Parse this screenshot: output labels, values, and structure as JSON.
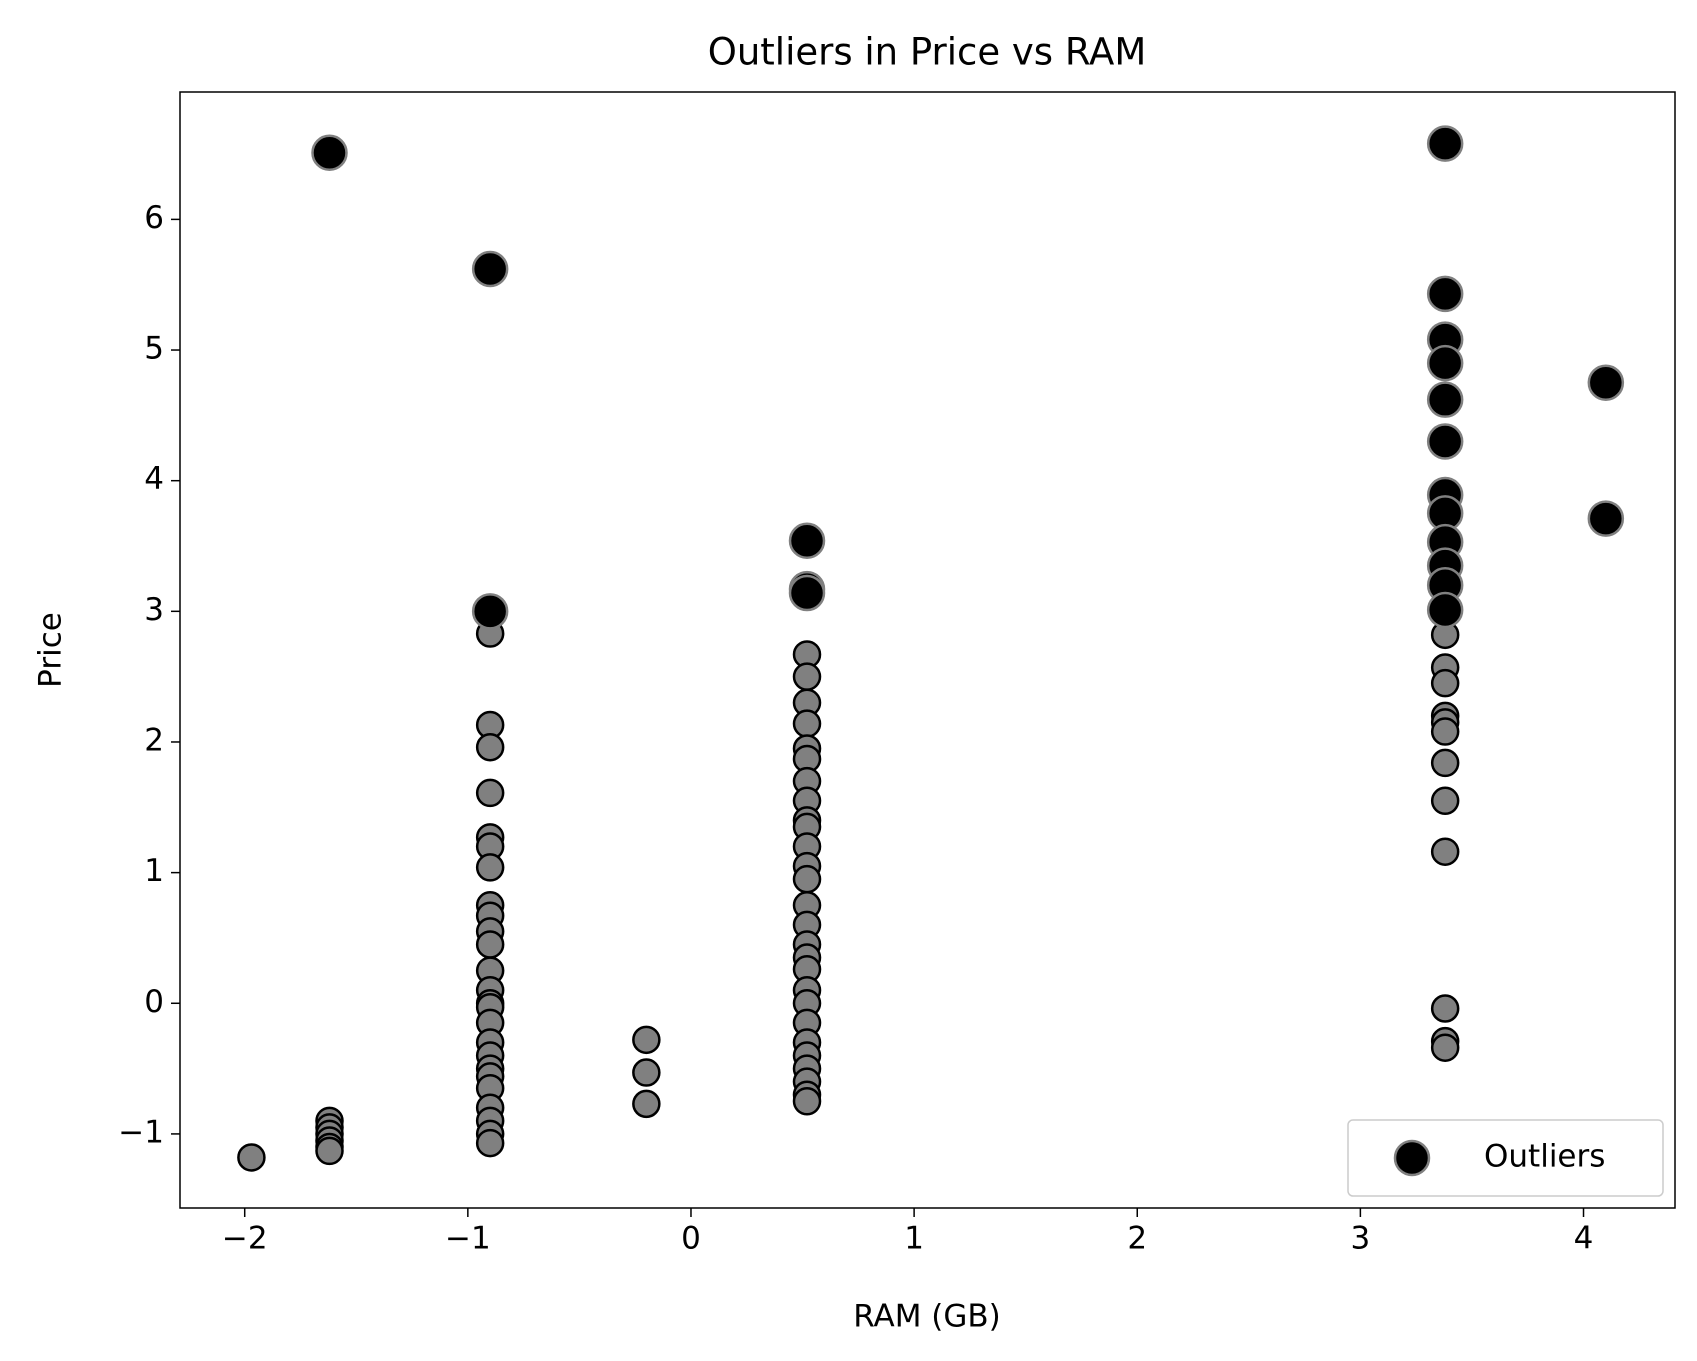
{
  "chart_data": {
    "type": "scatter",
    "title": "Outliers in Price vs RAM",
    "x_label": "RAM (GB)",
    "y_label": "Price",
    "xlim": [
      -2.29,
      4.41
    ],
    "ylim": [
      -1.567,
      6.975
    ],
    "xticks": [
      {
        "value": -2,
        "label": "−2"
      },
      {
        "value": -1,
        "label": "−1"
      },
      0,
      1,
      2,
      3,
      4
    ],
    "yticks": [
      {
        "value": -1,
        "label": "−1"
      },
      0,
      1,
      2,
      3,
      4,
      5,
      6
    ],
    "grid": false,
    "legend": "lower right",
    "series": [
      {
        "color": "#808080",
        "edgecolor": "#000000",
        "x": [
          -1.97,
          -1.62,
          -1.62,
          -1.62,
          -1.62,
          -1.62,
          -1.62,
          -0.9,
          -0.9,
          -0.9,
          -0.9,
          -0.9,
          -0.9,
          -0.9,
          -0.9,
          -0.9,
          -0.9,
          -0.9,
          -0.9,
          -0.9,
          -0.9,
          -0.9,
          -0.9,
          -0.9,
          -0.9,
          -0.9,
          -0.9,
          -0.9,
          -0.9,
          -0.9,
          -0.9,
          -0.9,
          -0.2,
          -0.2,
          -0.2,
          0.52,
          0.52,
          0.52,
          0.52,
          0.52,
          0.52,
          0.52,
          0.52,
          0.52,
          0.52,
          0.52,
          0.52,
          0.52,
          0.52,
          0.52,
          0.52,
          0.52,
          0.52,
          0.52,
          0.52,
          0.52,
          0.52,
          0.52,
          0.52,
          0.52,
          0.52,
          0.52,
          3.38,
          3.38,
          3.38,
          3.38,
          3.38,
          3.38,
          3.38,
          3.38,
          3.38,
          3.38,
          3.38,
          3.38
        ],
        "values": [
          -1.18,
          -0.9,
          -0.95,
          -1.0,
          -1.05,
          -1.1,
          -1.13,
          2.83,
          2.13,
          1.96,
          1.61,
          1.27,
          1.2,
          1.04,
          0.75,
          0.67,
          0.55,
          0.45,
          0.25,
          0.1,
          0.0,
          -0.03,
          -0.15,
          -0.3,
          -0.4,
          -0.5,
          -0.56,
          -0.65,
          -0.8,
          -0.9,
          -1.0,
          -1.07,
          -0.28,
          -0.53,
          -0.77,
          2.67,
          2.5,
          2.3,
          2.14,
          1.95,
          1.87,
          1.7,
          1.55,
          1.4,
          1.35,
          1.2,
          1.05,
          0.95,
          0.75,
          0.6,
          0.45,
          0.35,
          0.26,
          0.1,
          0.0,
          -0.15,
          -0.3,
          -0.4,
          -0.5,
          -0.6,
          -0.7,
          -0.75,
          2.82,
          2.57,
          2.45,
          2.2,
          2.15,
          2.08,
          1.84,
          1.55,
          1.16,
          -0.04,
          -0.29,
          -0.34
        ]
      },
      {
        "name": "Outliers",
        "color": "#000000",
        "edgecolor": "#808080",
        "x": [
          -1.62,
          -0.9,
          -0.9,
          0.52,
          0.52,
          0.52,
          3.38,
          3.38,
          3.38,
          3.38,
          3.38,
          3.38,
          3.38,
          3.38,
          3.38,
          3.38,
          3.38,
          3.38,
          4.1,
          4.1
        ],
        "values": [
          6.51,
          5.62,
          3.0,
          3.54,
          3.17,
          3.14,
          6.58,
          5.43,
          5.08,
          4.9,
          4.62,
          4.3,
          3.89,
          3.75,
          3.53,
          3.35,
          3.2,
          3.01,
          4.75,
          3.71
        ]
      }
    ]
  }
}
